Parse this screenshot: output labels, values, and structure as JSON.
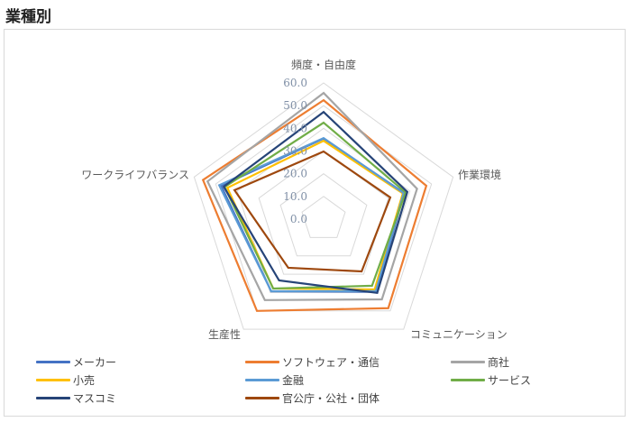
{
  "page": {
    "title": "業種別"
  },
  "chart_data": {
    "type": "radar",
    "title": "業種別",
    "axes": [
      "頻度・自由度",
      "作業環境",
      "コミュニケーション",
      "生産性",
      "ワークライフバランス"
    ],
    "ticks": [
      "0.0",
      "10.0",
      "20.0",
      "30.0",
      "40.0",
      "50.0",
      "60.0"
    ],
    "rlim": [
      0,
      60
    ],
    "grid": true,
    "legend_position": "bottom",
    "series": [
      {
        "name": "メーカー",
        "color": "#4472C4",
        "values": [
          35.5,
          37.3,
          39.6,
          39.3,
          47.5
        ]
      },
      {
        "name": "ソフトウェア・通信",
        "color": "#ED7D31",
        "values": [
          52.4,
          47.6,
          48.5,
          50.0,
          55.9
        ]
      },
      {
        "name": "商社",
        "color": "#A5A5A5",
        "values": [
          55.6,
          43.3,
          43.7,
          44.1,
          53.8
        ]
      },
      {
        "name": "小売",
        "color": "#FFC000",
        "values": [
          34.5,
          36.7,
          38.3,
          37.8,
          44.6
        ]
      },
      {
        "name": "金融",
        "color": "#5B9BD5",
        "values": [
          35.7,
          37.1,
          39.2,
          39.3,
          48.4
        ]
      },
      {
        "name": "サービス",
        "color": "#70AD47",
        "values": [
          42.5,
          38.0,
          36.3,
          37.8,
          45.9
        ]
      },
      {
        "name": "マスコミ",
        "color": "#264478",
        "values": [
          47.2,
          38.8,
          40.2,
          33.4,
          46.3
        ]
      },
      {
        "name": "官公庁・公社・団体",
        "color": "#9E480E",
        "values": [
          29.8,
          30.9,
          28.5,
          26.5,
          41.3
        ]
      }
    ]
  }
}
